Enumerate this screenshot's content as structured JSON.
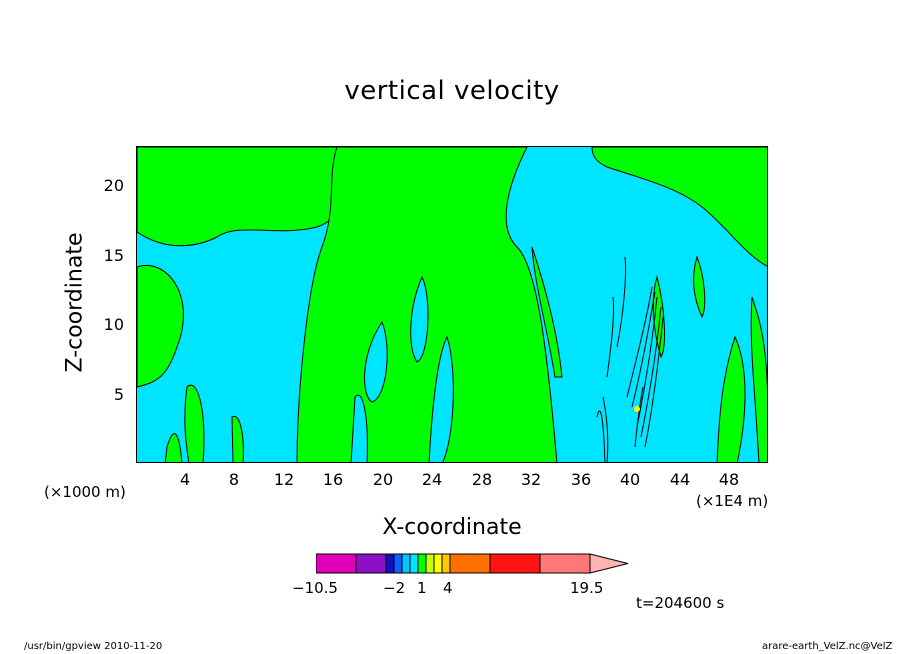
{
  "chart_data": {
    "type": "heatmap",
    "title": "vertical velocity",
    "xlabel": "X-coordinate",
    "ylabel": "Z-coordinate",
    "x_unit_left": "(×1000 m)",
    "x_unit_right": "(×1E4 m)",
    "xlim": [
      0,
      51
    ],
    "ylim": [
      0,
      23
    ],
    "x_ticks": [
      "4",
      "8",
      "12",
      "16",
      "20",
      "24",
      "28",
      "32",
      "36",
      "40",
      "44",
      "48"
    ],
    "y_ticks": [
      "5",
      "10",
      "15",
      "20"
    ],
    "colorbar": {
      "labels": [
        "−10.5",
        "−2",
        "1",
        "4",
        "19.5"
      ],
      "colors": [
        "#e000b8",
        "#8c10c8",
        "#1010c8",
        "#1060ff",
        "#00c8ff",
        "#00e5ff",
        "#00ff00",
        "#c8ff00",
        "#ffff00",
        "#ffc800",
        "#ff7000",
        "#ff1414",
        "#ff7878",
        "#ffb4b4"
      ]
    },
    "time_label": "t=204600 s",
    "footer_left": "/usr/bin/gpview   2010-11-20",
    "footer_right": "arare-earth_VelZ.nc@VelZ"
  }
}
